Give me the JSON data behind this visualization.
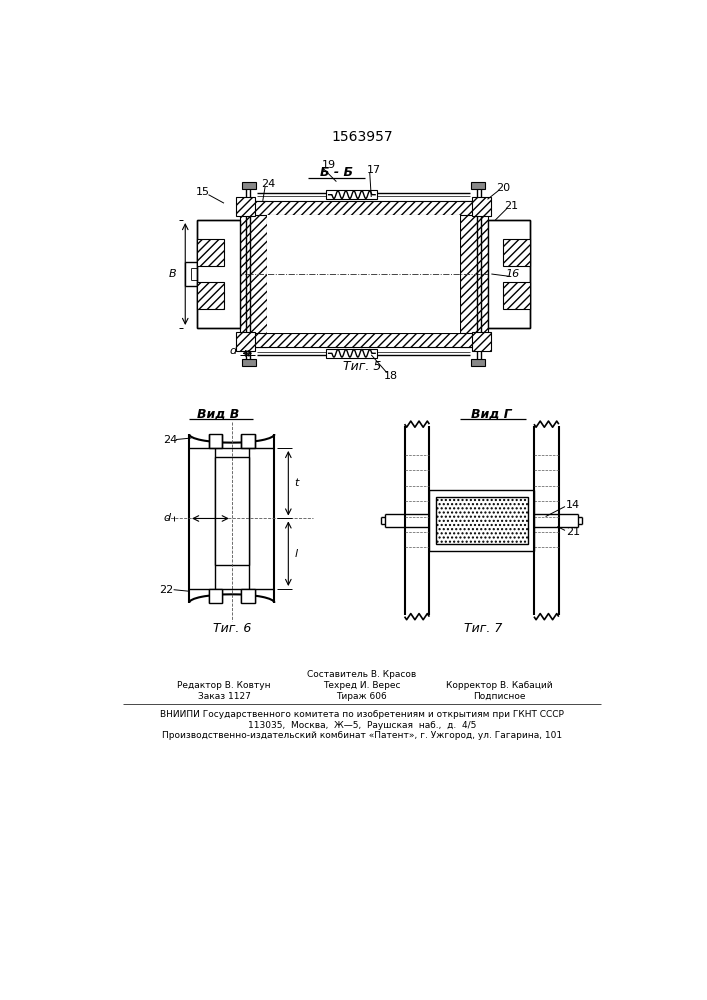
{
  "title": "1563957",
  "bg_color": "#ffffff",
  "fig5_label": "Τиг. 5",
  "fig6_label": "Τиг. 6",
  "fig7_label": "Τиг. 7",
  "view_b_label": "Вид В",
  "view_g_label": "Вид Г",
  "section_bb_label": "Б - Б",
  "footer_line1": "Составитель В. Красов",
  "footer_line2_left": "Редактор В. Ковтун",
  "footer_line2_mid": "Техред И. Верес",
  "footer_line2_right": "Корректор В. Кабаций",
  "footer_line3_left": "Заказ 1127",
  "footer_line3_mid": "Тираж 606",
  "footer_line3_right": "Подписное",
  "footer_line4": "ВНИИПИ Государственного комитета по изобретениям и открытиям при ГКНТ СССР",
  "footer_line5": "113035,  Москва,  Ж—5,  Раушская  наб.,  д.  4/5",
  "footer_line6": "Производственно-издательский комбинат «Патент», г. Ужгород, ул. Гагарина, 101"
}
